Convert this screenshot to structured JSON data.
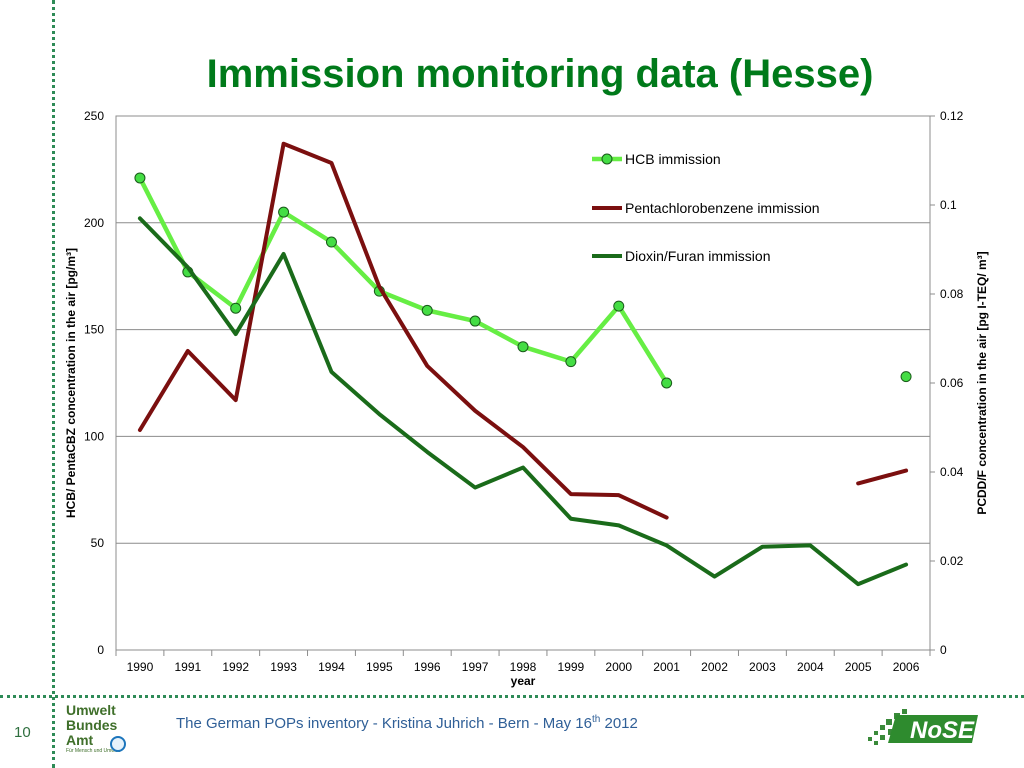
{
  "title": "Immission monitoring data (Hesse)",
  "page_number": "10",
  "footer": {
    "text_main": "The German POPs inventory  -  Kristina Juhrich - Bern - May 16",
    "text_sup": "th",
    "text_end": " 2012"
  },
  "logos": {
    "uba_line1": "Umwelt",
    "uba_line2": "Bundes",
    "uba_line3": "Amt",
    "uba_sub": "Für Mensch und Umwelt",
    "nose_text": "NoSE"
  },
  "colors": {
    "title": "#007a1a",
    "hcb": "#66ee44",
    "hcb_marker": "#44dd44",
    "pentachlorobenzene": "#7b0f0f",
    "dioxin": "#1a6b1a",
    "grid": "#8c8c8c"
  },
  "chart_data": {
    "type": "line",
    "xlabel": "year",
    "ylabel_left": "HCB/ PentaCBZ concentration in the air [pg/m³]",
    "ylabel_right": "PCDD/F concentration in the air [pg I-TEQ/ m³]",
    "categories": [
      "1990",
      "1991",
      "1992",
      "1993",
      "1994",
      "1995",
      "1996",
      "1997",
      "1998",
      "1999",
      "2000",
      "2001",
      "2002",
      "2003",
      "2004",
      "2005",
      "2006"
    ],
    "ylim_left": [
      0,
      250
    ],
    "yticks_left": [
      "0",
      "50",
      "100",
      "150",
      "200",
      "250"
    ],
    "ylim_right": [
      0,
      0.12
    ],
    "yticks_right": [
      "0",
      "0.02",
      "0.04",
      "0.06",
      "0.08",
      "0.1",
      "0.12"
    ],
    "grid": true,
    "legend_position": "top-right",
    "series": [
      {
        "name": "HCB immission",
        "axis": "left",
        "markers": true,
        "values": [
          221,
          177,
          160,
          205,
          191,
          168,
          159,
          154,
          142,
          135,
          161,
          125,
          null,
          null,
          null,
          null,
          128
        ]
      },
      {
        "name": "Pentachlorobenzene immission",
        "axis": "left",
        "markers": false,
        "values": [
          103,
          140,
          117,
          237,
          228,
          170,
          133,
          112,
          95,
          73,
          72.5,
          62,
          null,
          null,
          null,
          78,
          84
        ]
      },
      {
        "name": "Dioxin/Furan immission",
        "axis": "right",
        "markers": false,
        "values": [
          0.097,
          0.086,
          0.071,
          0.089,
          0.0625,
          0.053,
          0.0445,
          0.0365,
          0.041,
          0.0295,
          0.028,
          0.0235,
          0.0165,
          0.0232,
          0.0235,
          0.0148,
          0.0192
        ]
      }
    ]
  }
}
